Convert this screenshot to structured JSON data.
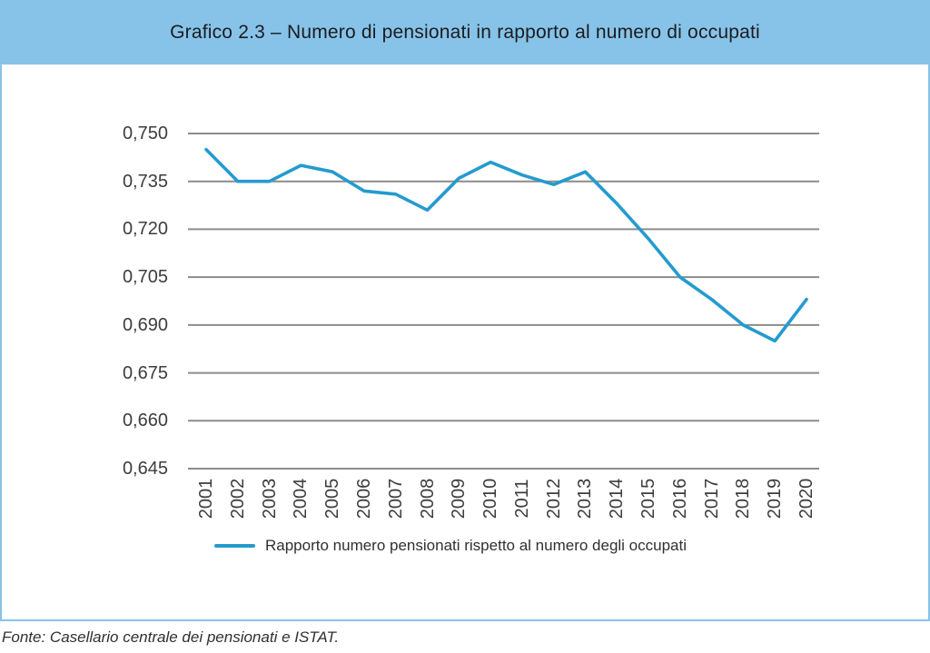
{
  "header": {
    "title": "Grafico 2.3 – Numero di pensionati in rapporto al numero di occupati"
  },
  "footer": {
    "source": "Fonte: Casellario centrale dei pensionati e ISTAT."
  },
  "colors": {
    "band_blue": "#87c3e9",
    "line_blue": "#249bce",
    "grid_gray": "#8c8c8c",
    "title_text": "#1c1c1e",
    "tick_text": "#3d3d3d"
  },
  "chart_data": {
    "type": "line",
    "title": "Grafico 2.3 – Numero di pensionati in rapporto al numero di occupati",
    "categories": [
      "2001",
      "2002",
      "2003",
      "2004",
      "2005",
      "2006",
      "2007",
      "2008",
      "2009",
      "2010",
      "2011",
      "2012",
      "2013",
      "2014",
      "2015",
      "2016",
      "2017",
      "2018",
      "2019",
      "2020"
    ],
    "series": [
      {
        "name": "Rapporto numero pensionati rispetto al numero degli occupati",
        "color": "#249bce",
        "values": [
          0.745,
          0.735,
          0.735,
          0.74,
          0.738,
          0.732,
          0.731,
          0.726,
          0.736,
          0.741,
          0.737,
          0.734,
          0.738,
          0.728,
          0.717,
          0.705,
          0.698,
          0.69,
          0.685,
          0.698
        ]
      }
    ],
    "y_ticks": [
      {
        "label": "0,750",
        "value": 0.75
      },
      {
        "label": "0,735",
        "value": 0.735
      },
      {
        "label": "0,720",
        "value": 0.72
      },
      {
        "label": "0,705",
        "value": 0.705
      },
      {
        "label": "0,690",
        "value": 0.69
      },
      {
        "label": "0,675",
        "value": 0.675
      },
      {
        "label": "0,660",
        "value": 0.66
      },
      {
        "label": "0,645",
        "value": 0.645
      }
    ],
    "ylim": [
      0.645,
      0.75
    ],
    "xlabel": "",
    "ylabel": "",
    "grid": true,
    "legend_position": "bottom",
    "number_format": "italian-decimal-comma"
  }
}
